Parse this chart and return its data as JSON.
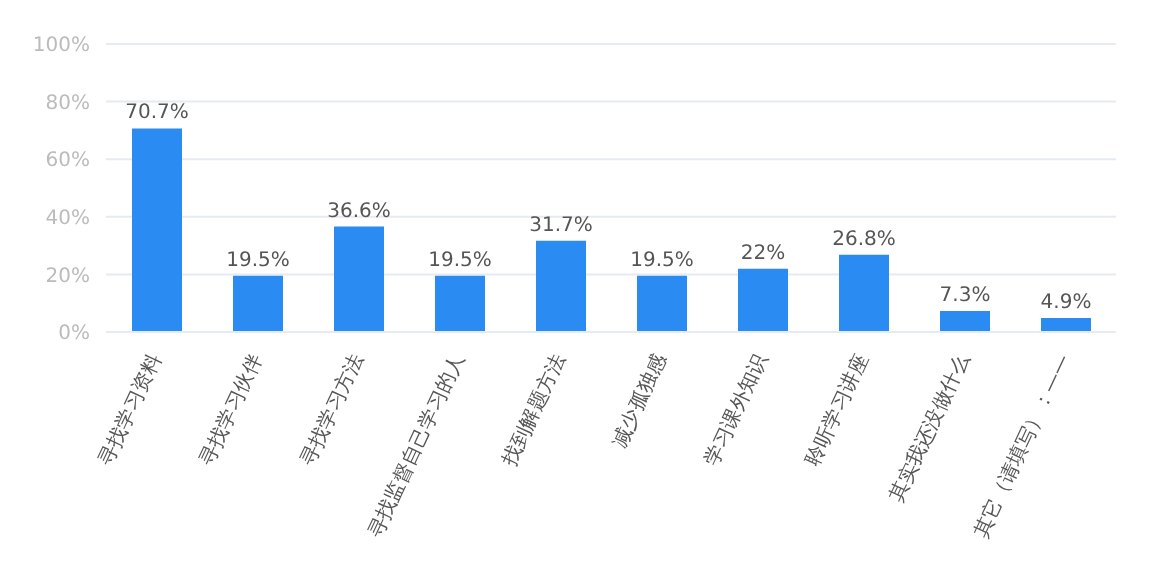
{
  "chart_data": {
    "type": "bar",
    "categories": [
      "寻找学习资料",
      "寻找学习伙伴",
      "寻找学习方法",
      "寻找监督自己学习的人",
      "找到解题方法",
      "减少孤独感",
      "学习课外知识",
      "聆听学习讲座",
      "其实我还没做什么",
      "其它（请填写）：——"
    ],
    "values": [
      70.7,
      19.5,
      36.6,
      19.5,
      31.7,
      19.5,
      22,
      26.8,
      7.3,
      4.9
    ],
    "value_labels": [
      "70.7%",
      "19.5%",
      "36.6%",
      "19.5%",
      "31.7%",
      "19.5%",
      "22%",
      "26.8%",
      "7.3%",
      "4.9%"
    ],
    "color": "#2a8cf3",
    "ylim": [
      0,
      100
    ],
    "yticks": [
      {
        "value": 0,
        "label": "0%"
      },
      {
        "value": 20,
        "label": "20%"
      },
      {
        "value": 40,
        "label": "40%"
      },
      {
        "value": 60,
        "label": "60%"
      },
      {
        "value": 80,
        "label": "80%"
      },
      {
        "value": 100,
        "label": "100%"
      }
    ],
    "grid": "y"
  }
}
